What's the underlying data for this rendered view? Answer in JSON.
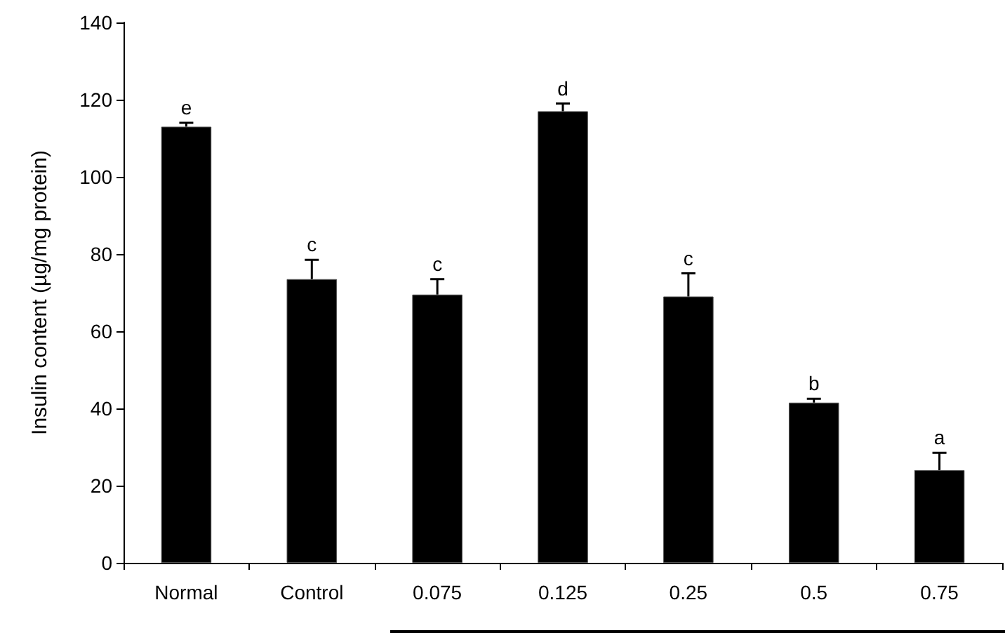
{
  "chart_data": {
    "type": "bar",
    "ylabel": "Insulin content (µg/mg protein)",
    "categories": [
      "Normal",
      "Control",
      "0.075",
      "0.125",
      "0.25",
      "0.5",
      "0.75"
    ],
    "values": [
      113,
      73.5,
      69.5,
      117,
      69,
      41.5,
      24
    ],
    "errors": [
      1,
      5,
      4,
      2,
      6,
      1,
      4.5
    ],
    "color": "#000000",
    "ylim": [
      0,
      140
    ],
    "yticks": [
      0,
      20,
      40,
      60,
      80,
      100,
      120,
      140
    ],
    "annotations": [
      {
        "text": "e",
        "x": "Normal",
        "y": 114
      },
      {
        "text": "c",
        "x": "Control",
        "y": 78.5
      },
      {
        "text": "c",
        "x": "0.075",
        "y": 73.5
      },
      {
        "text": "d",
        "x": "0.125",
        "y": 119
      },
      {
        "text": "c",
        "x": "0.25",
        "y": 75
      },
      {
        "text": "b",
        "x": "0.5",
        "y": 42.5
      },
      {
        "text": "a",
        "x": "0.75",
        "y": 28.5
      }
    ],
    "grid": false
  }
}
